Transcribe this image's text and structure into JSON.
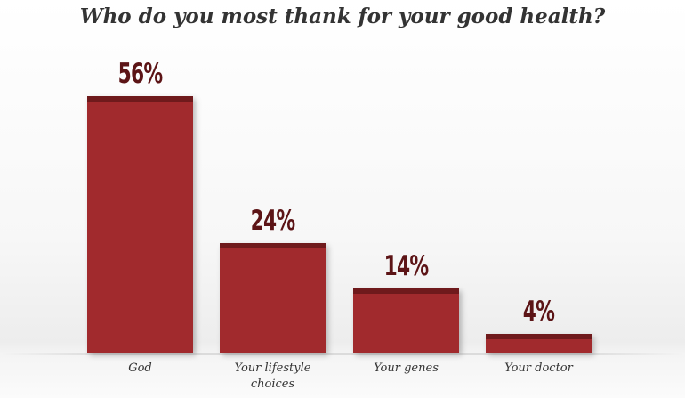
{
  "chart_data": {
    "type": "bar",
    "title": "Who do you most thank for your good health?",
    "categories": [
      "God",
      "Your lifestyle choices",
      "Your genes",
      "Your doctor"
    ],
    "category_lines": [
      [
        "God"
      ],
      [
        "Your lifestyle",
        "choices"
      ],
      [
        "Your genes"
      ],
      [
        "Your doctor"
      ]
    ],
    "values": [
      56,
      24,
      14,
      4
    ],
    "value_labels": [
      "56%",
      "24%",
      "14%",
      "4%"
    ],
    "ylim": [
      0,
      56
    ],
    "xlabel": "",
    "ylabel": "",
    "grid": false
  },
  "colors": {
    "bar": "#a12a2d",
    "bar_cap": "#6f1a1c",
    "value_text": "#5c1416"
  }
}
